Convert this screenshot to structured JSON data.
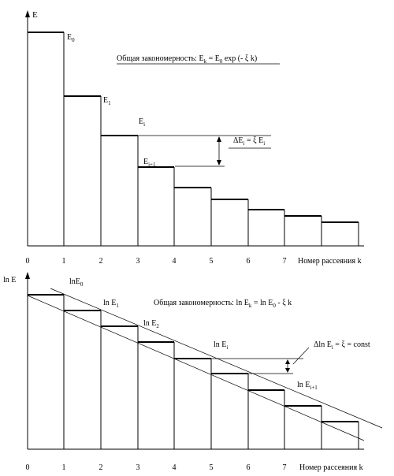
{
  "top": {
    "y_label": "E",
    "x_label": "Номер рассеяния  k",
    "x_ticks": [
      "0",
      "1",
      "2",
      "3",
      "4",
      "5",
      "6",
      "7"
    ],
    "levels": [
      {
        "label": "E",
        "sub": "0"
      },
      {
        "label": "E",
        "sub": "1"
      },
      {
        "label": "",
        "sub": ""
      },
      {
        "label": "",
        "sub": ""
      },
      {
        "label": "",
        "sub": ""
      },
      {
        "label": "",
        "sub": ""
      },
      {
        "label": "",
        "sub": ""
      },
      {
        "label": "",
        "sub": ""
      },
      {
        "label": "",
        "sub": ""
      }
    ],
    "ei_label": {
      "label": "E",
      "sub": "i"
    },
    "ei1_label": {
      "label": "E",
      "sub": "i+1"
    },
    "formula": {
      "prefix": "Общая закономерность:  E",
      "k": "k",
      "mid": " = E",
      "zero": "0",
      "suffix": " exp (- ξ k)"
    },
    "delta": {
      "a": "ΔE",
      "sub1": "i",
      "b": " = ξ E",
      "sub2": "i"
    }
  },
  "bottom": {
    "y_label": "ln E",
    "x_label": "Номер рассеяния  k",
    "x_ticks": [
      "0",
      "1",
      "2",
      "3",
      "4",
      "5",
      "6",
      "7"
    ],
    "levels": [
      {
        "label": "lnE",
        "sub": "0"
      },
      {
        "label": "ln E",
        "sub": "1"
      },
      {
        "label": "ln E",
        "sub": "2"
      },
      {
        "label": "",
        "sub": ""
      },
      {
        "label": "",
        "sub": ""
      },
      {
        "label": "",
        "sub": ""
      },
      {
        "label": "",
        "sub": ""
      },
      {
        "label": "",
        "sub": ""
      },
      {
        "label": "",
        "sub": ""
      }
    ],
    "ei_label": {
      "label": "ln E",
      "sub": "i"
    },
    "ei1_label": {
      "label": "ln E",
      "sub": "i+1"
    },
    "formula": "Общая закономерность: ln E",
    "formula_k": "k",
    "formula_mid": " = ln E",
    "formula_zero": "0",
    "formula_suffix": " - ξ k",
    "delta": {
      "a": "Δln E",
      "sub": "i",
      "b": " = ξ = const"
    }
  },
  "colors": {
    "ink": "#000000",
    "background": "#ffffff"
  }
}
